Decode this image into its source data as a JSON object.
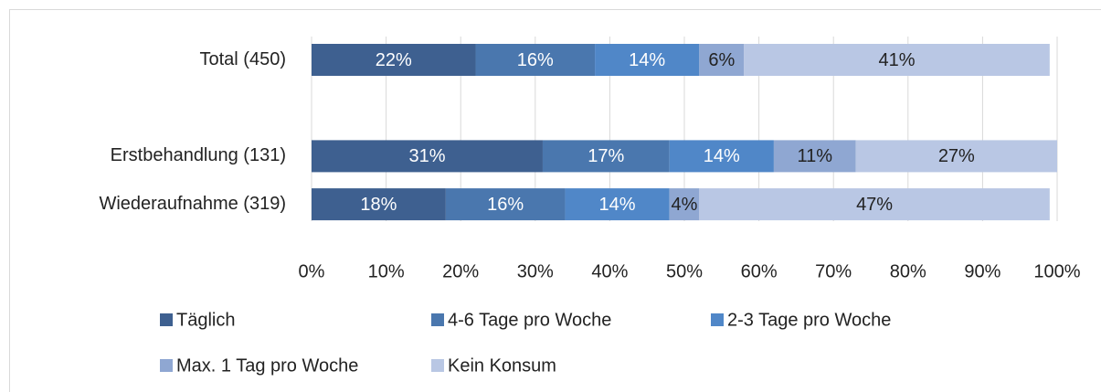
{
  "chart_data": {
    "type": "stacked-bar-horizontal",
    "categories": [
      "Total (450)",
      null,
      "Erstbehandlung (131)",
      "Wiederaufnahme  (319)"
    ],
    "series": [
      {
        "name": "Täglich",
        "color": "#3e6090",
        "values": [
          22,
          null,
          31,
          18
        ],
        "value_labels": [
          "22%",
          null,
          "31%",
          "18%"
        ]
      },
      {
        "name": "4-6 Tage pro Woche",
        "color": "#4a77ae",
        "values": [
          16,
          null,
          17,
          16
        ],
        "value_labels": [
          "16%",
          null,
          "17%",
          "16%"
        ]
      },
      {
        "name": "2-3 Tage pro Woche",
        "color": "#5087c8",
        "values": [
          14,
          null,
          14,
          14
        ],
        "value_labels": [
          "14%",
          null,
          "14%",
          "14%"
        ]
      },
      {
        "name": "Max. 1 Tag pro Woche",
        "color": "#8fa7d2",
        "values": [
          6,
          null,
          11,
          4
        ],
        "value_labels": [
          "6%",
          null,
          "11%",
          "4%"
        ]
      },
      {
        "name": "Kein Konsum",
        "color": "#b9c7e4",
        "values": [
          41,
          null,
          27,
          47
        ],
        "value_labels": [
          "41%",
          null,
          "27%",
          "47%"
        ]
      }
    ],
    "xlim": [
      0,
      100
    ],
    "xticks": [
      {
        "value": 0,
        "label": "0%"
      },
      {
        "value": 10,
        "label": "10%"
      },
      {
        "value": 20,
        "label": "20%"
      },
      {
        "value": 30,
        "label": "30%"
      },
      {
        "value": 40,
        "label": "40%"
      },
      {
        "value": 50,
        "label": "50%"
      },
      {
        "value": 60,
        "label": "60%"
      },
      {
        "value": 70,
        "label": "70%"
      },
      {
        "value": 80,
        "label": "80%"
      },
      {
        "value": 90,
        "label": "90%"
      },
      {
        "value": 100,
        "label": "100%"
      }
    ],
    "grid": true,
    "legend": "bottom"
  }
}
